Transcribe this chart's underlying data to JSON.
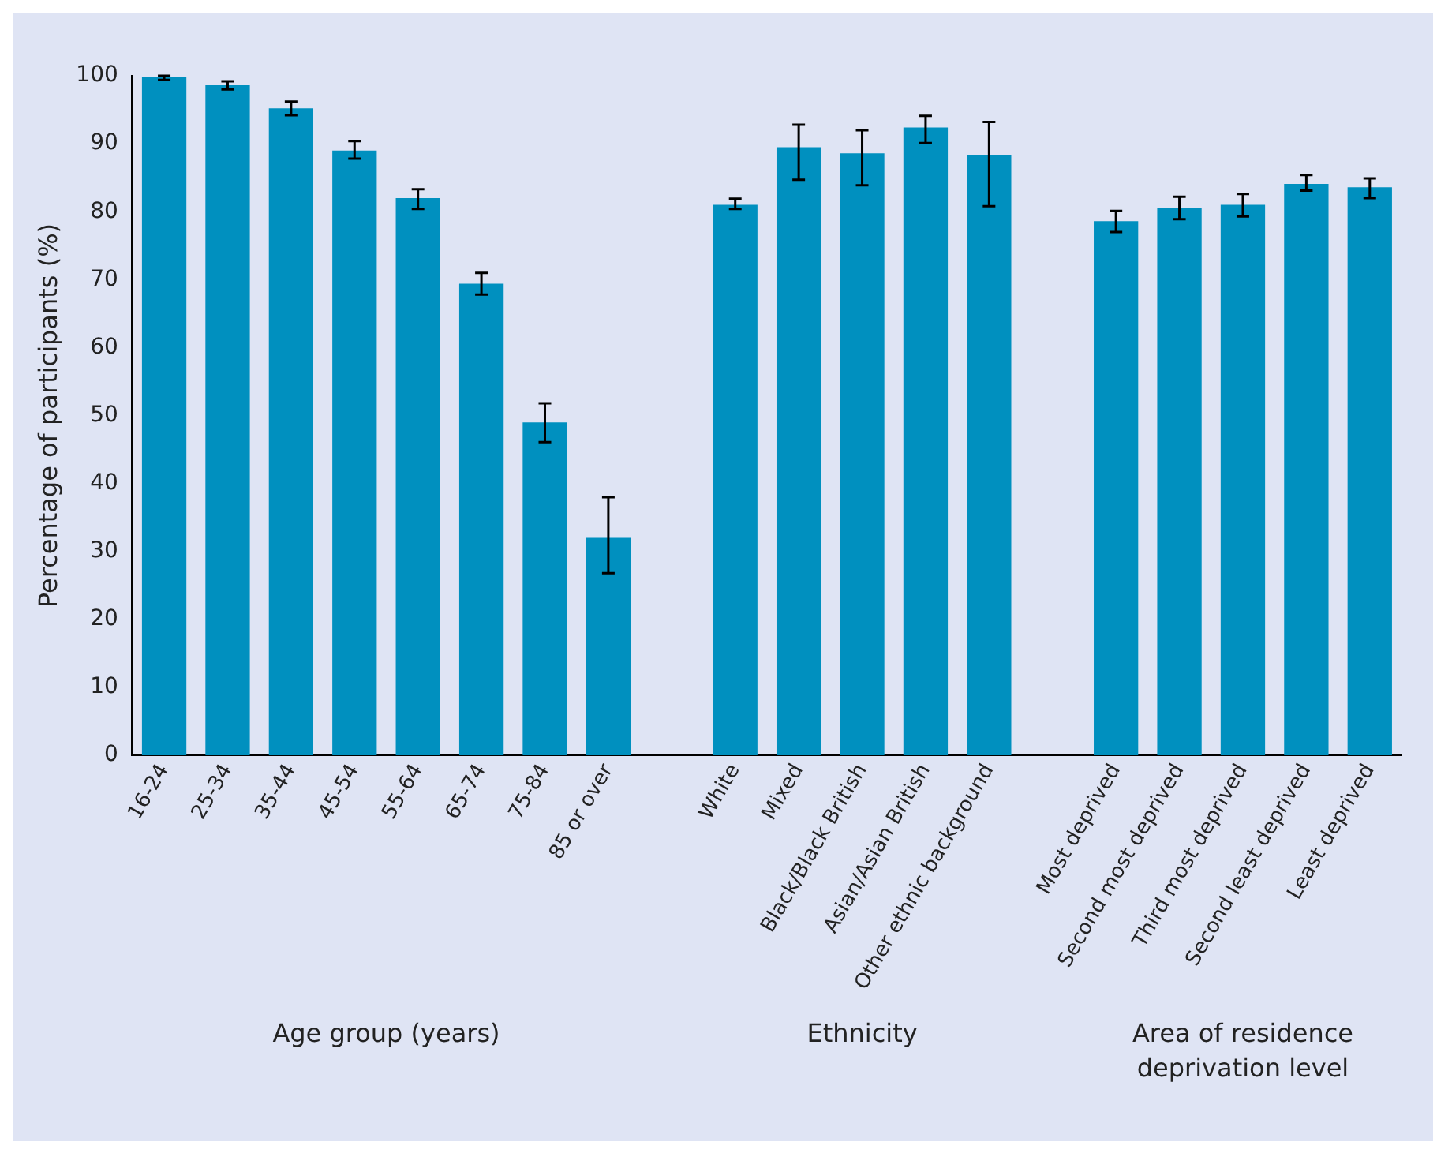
{
  "chart_data": {
    "type": "bar",
    "ylabel": "Percentage of participants (%)",
    "categories": [
      "16-24",
      "25-34",
      "35-44",
      "45-54",
      "55-64",
      "65-74",
      "75-84",
      "85 or over",
      null,
      "White",
      "Mixed",
      "Black/Black British",
      "Asian/Asian British",
      "Other ethnic background",
      null,
      "Most deprived",
      "Second most deprived",
      "Third most deprived",
      "Second least deprived",
      "Least deprived"
    ],
    "values": [
      99.8,
      98.6,
      95.2,
      89,
      82,
      69.4,
      49,
      32,
      null,
      81,
      89.5,
      88.6,
      92.4,
      88.4,
      null,
      78.6,
      80.5,
      81,
      84.1,
      83.6
    ],
    "errors": [
      [
        99.4,
        100
      ],
      [
        98,
        99.2
      ],
      [
        94.2,
        96.2
      ],
      [
        87.8,
        90.4
      ],
      [
        80.4,
        83.3
      ],
      [
        67.8,
        71
      ],
      [
        46.1,
        51.8
      ],
      [
        26.8,
        38
      ],
      null,
      [
        80.4,
        81.9
      ],
      [
        84.7,
        92.8
      ],
      [
        83.9,
        92
      ],
      [
        90.1,
        94.1
      ],
      [
        80.8,
        93.2
      ],
      null,
      [
        77,
        80.1
      ],
      [
        78.9,
        82.2
      ],
      [
        79.3,
        82.6
      ],
      [
        83.1,
        85.4
      ],
      [
        82,
        84.9
      ]
    ],
    "color": "#0090bf",
    "ylim": [
      0,
      100
    ],
    "yticks": [
      0,
      10,
      20,
      30,
      40,
      50,
      60,
      70,
      80,
      90,
      100
    ],
    "grid": false,
    "legend": false,
    "annotations": [
      "Age group (years)",
      "Ethnicity",
      "Area of residence deprivation level"
    ]
  }
}
